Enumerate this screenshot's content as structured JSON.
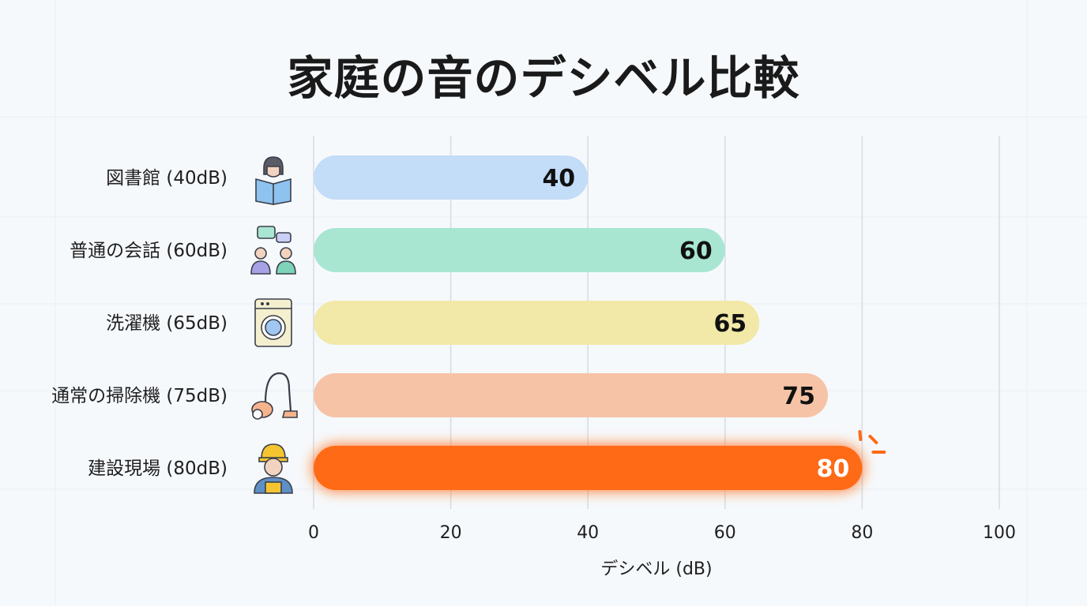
{
  "title": "家庭の音のデシベル比較",
  "chart_data": {
    "type": "bar",
    "orientation": "horizontal",
    "title": "家庭の音のデシベル比較",
    "categories": [
      "図書館 (40dB)",
      "普通の会話 (60dB)",
      "洗濯機 (65dB)",
      "通常の掃除機 (75dB)",
      "建設現場 (80dB)"
    ],
    "values": [
      40,
      60,
      65,
      75,
      80
    ],
    "value_labels": [
      "40",
      "60",
      "65",
      "75",
      "80"
    ],
    "colors": [
      "#c3dcf8",
      "#a8e6d2",
      "#f2e8a8",
      "#f7c3a6",
      "#ff6a12"
    ],
    "icons": [
      "person-reading-book-icon",
      "two-people-chatting-icon",
      "washing-machine-icon",
      "vacuum-cleaner-icon",
      "construction-worker-icon"
    ],
    "xlabel": "デシベル (dB)",
    "xlim": [
      0,
      100
    ],
    "xticks": [
      0,
      20,
      40,
      60,
      80,
      100
    ],
    "grid": true,
    "highlight": "建設現場 (80dB)"
  }
}
